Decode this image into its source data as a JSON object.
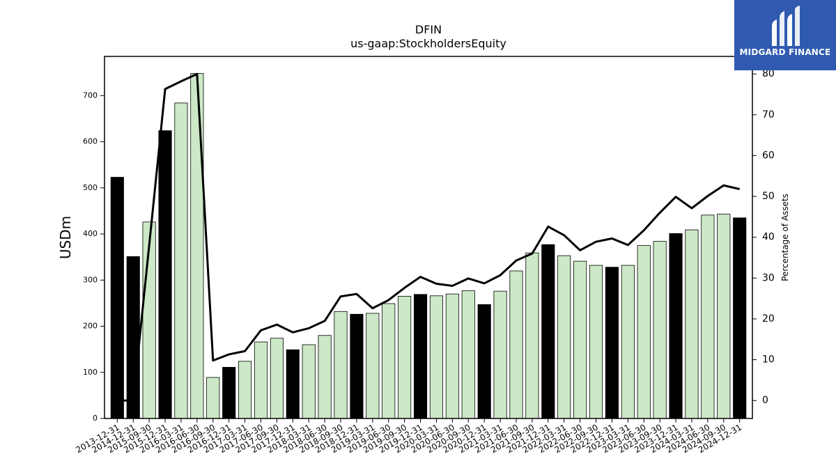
{
  "chart_data": {
    "type": "bar",
    "title": "DFIN",
    "subtitle": "us-gaap:StockholdersEquity",
    "ylabel": "USDm",
    "ylabel_right": "Percentage of Assets",
    "ylim": [
      0,
      785
    ],
    "ylim_right": [
      -4.4,
      84.3
    ],
    "yticks": [
      0,
      100,
      200,
      300,
      400,
      500,
      600,
      700
    ],
    "yticks_right": [
      0,
      10,
      20,
      30,
      40,
      50,
      60,
      70,
      80
    ],
    "categories": [
      "2013-12-31",
      "2014-12-31",
      "2015-09-30",
      "2015-12-31",
      "2016-03-31",
      "2016-06-30",
      "2016-09-30",
      "2016-12-31",
      "2017-03-31",
      "2017-06-30",
      "2017-09-30",
      "2017-12-31",
      "2018-03-31",
      "2018-06-30",
      "2018-09-30",
      "2018-12-31",
      "2019-03-31",
      "2019-06-30",
      "2019-09-30",
      "2019-12-31",
      "2020-03-31",
      "2020-06-30",
      "2020-09-30",
      "2020-12-31",
      "2021-03-31",
      "2021-06-30",
      "2021-09-30",
      "2021-12-31",
      "2022-03-31",
      "2022-06-30",
      "2022-09-30",
      "2022-12-31",
      "2023-03-31",
      "2023-06-30",
      "2023-09-30",
      "2023-12-31",
      "2024-03-31",
      "2024-06-30",
      "2024-09-30",
      "2024-12-31"
    ],
    "series": [
      {
        "type": "bar",
        "values": [
          523,
          351,
          426,
          624,
          684,
          748,
          89,
          111,
          124,
          166,
          174,
          149,
          160,
          180,
          232,
          226,
          228,
          249,
          265,
          269,
          266,
          270,
          277,
          247,
          276,
          320,
          359,
          377,
          353,
          341,
          332,
          328,
          332,
          375,
          384,
          401,
          409,
          441,
          443,
          435
        ],
        "year_end": [
          true,
          true,
          false,
          true,
          false,
          false,
          false,
          true,
          false,
          false,
          false,
          true,
          false,
          false,
          false,
          true,
          false,
          false,
          false,
          true,
          false,
          false,
          false,
          true,
          false,
          false,
          false,
          true,
          false,
          false,
          false,
          true,
          false,
          false,
          false,
          true,
          false,
          false,
          false,
          true
        ]
      },
      {
        "type": "line",
        "axis": "right",
        "values": [
          0,
          0,
          38,
          76.3,
          78.2,
          80,
          9.8,
          11.3,
          12.1,
          17.2,
          18.6,
          16.7,
          17.7,
          19.5,
          25.5,
          26.1,
          22.6,
          24.6,
          27.6,
          30.3,
          28.6,
          28.1,
          29.9,
          28.7,
          30.7,
          34.3,
          36,
          42.6,
          40.5,
          36.8,
          38.9,
          39.7,
          38.1,
          41.7,
          46,
          49.9,
          47.1,
          50.1,
          52.7,
          51.8
        ]
      }
    ],
    "colors": {
      "bar_year_end": "#000000",
      "bar_quarter": "#cce8c6",
      "bar_edge": "#000000",
      "line": "#000000"
    },
    "grid": false
  },
  "logo": {
    "text": "MIDGARD FINANCE",
    "background": "#2f5ab0"
  }
}
